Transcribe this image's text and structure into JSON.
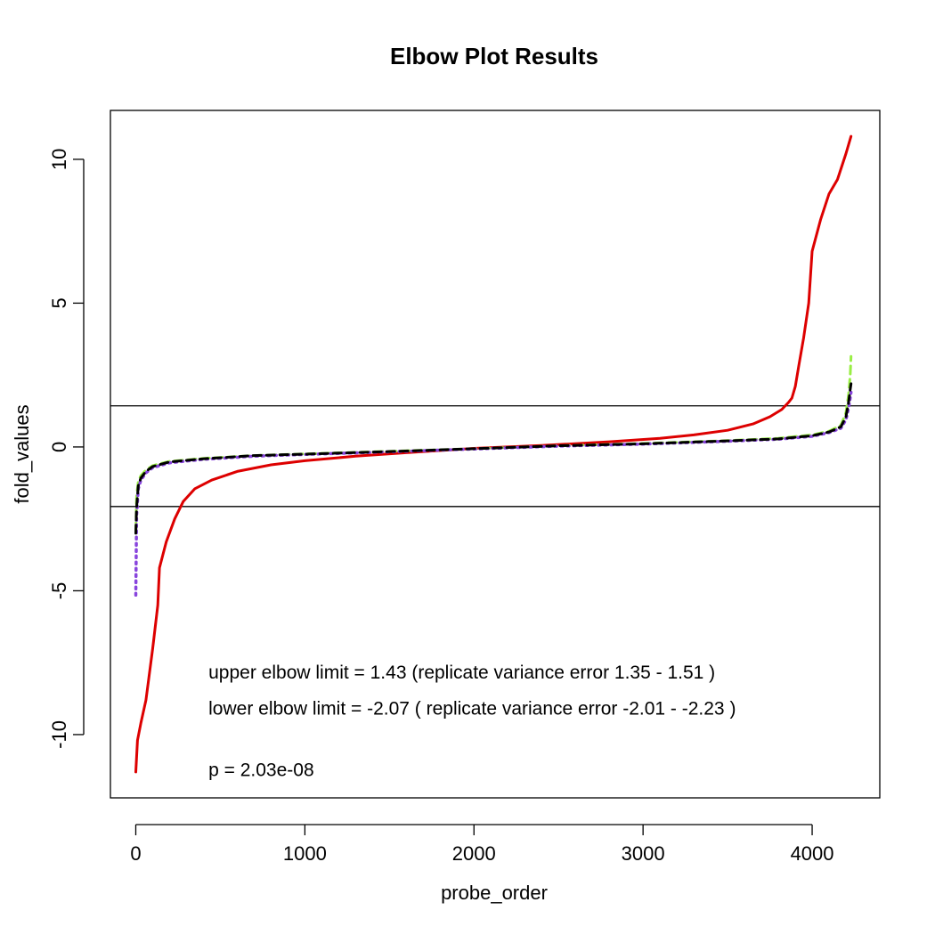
{
  "chart_data": {
    "type": "line",
    "title": "Elbow Plot Results",
    "xlabel": "probe_order",
    "ylabel": "fold_values",
    "xlim": [
      -150,
      4400
    ],
    "ylim": [
      -12.2,
      11.7
    ],
    "x_ticks": [
      0,
      1000,
      2000,
      3000,
      4000
    ],
    "y_ticks": [
      -10,
      -5,
      0,
      5,
      10
    ],
    "grid": false,
    "legend": null,
    "hlines": [
      1.43,
      -2.07
    ],
    "series": [
      {
        "color": "#dd0000",
        "style": "solid",
        "x": [
          0,
          10,
          30,
          60,
          100,
          130,
          140,
          180,
          230,
          280,
          350,
          450,
          600,
          800,
          1000,
          1300,
          1600,
          2000,
          2400,
          2800,
          3100,
          3300,
          3500,
          3650,
          3750,
          3820,
          3860,
          3880,
          3900,
          3920,
          3950,
          3980,
          4000,
          4050,
          4100,
          4150,
          4200,
          4230
        ],
        "y": [
          -11.3,
          -10.2,
          -9.6,
          -8.8,
          -7.0,
          -5.5,
          -4.2,
          -3.3,
          -2.5,
          -1.9,
          -1.45,
          -1.15,
          -0.85,
          -0.62,
          -0.48,
          -0.32,
          -0.2,
          -0.05,
          0.05,
          0.18,
          0.3,
          0.42,
          0.58,
          0.8,
          1.05,
          1.3,
          1.55,
          1.7,
          2.1,
          2.8,
          3.8,
          5.0,
          6.8,
          7.9,
          8.8,
          9.3,
          10.2,
          10.8
        ]
      },
      {
        "color": "#99ee44",
        "style": "dashed",
        "x": [
          0,
          5,
          15,
          30,
          60,
          100,
          200,
          400,
          700,
          1000,
          1500,
          2000,
          2500,
          3000,
          3500,
          3800,
          4000,
          4100,
          4170,
          4200,
          4215,
          4225,
          4230
        ],
        "y": [
          -2.9,
          -1.7,
          -1.2,
          -1.0,
          -0.8,
          -0.65,
          -0.5,
          -0.4,
          -0.3,
          -0.24,
          -0.15,
          -0.06,
          0.04,
          0.12,
          0.22,
          0.3,
          0.42,
          0.55,
          0.75,
          1.2,
          1.8,
          2.5,
          3.15
        ]
      },
      {
        "color": "#8844dd",
        "style": "dotted",
        "x": [
          0,
          5,
          15,
          30,
          60,
          100,
          200,
          400,
          700,
          1000,
          1500,
          2000,
          2500,
          3000,
          3500,
          3800,
          4000,
          4100,
          4170,
          4200,
          4215,
          4225,
          4230
        ],
        "y": [
          -5.15,
          -2.4,
          -1.45,
          -1.15,
          -0.9,
          -0.72,
          -0.55,
          -0.43,
          -0.32,
          -0.26,
          -0.17,
          -0.07,
          0.03,
          0.1,
          0.2,
          0.27,
          0.37,
          0.5,
          0.65,
          0.95,
          1.35,
          1.7,
          1.9
        ]
      },
      {
        "color": "#000000",
        "style": "dashed",
        "x": [
          0,
          5,
          15,
          30,
          60,
          100,
          200,
          400,
          700,
          1000,
          1500,
          2000,
          2500,
          3000,
          3500,
          3800,
          4000,
          4100,
          4170,
          4200,
          4215,
          4225,
          4230
        ],
        "y": [
          -3.0,
          -2.1,
          -1.35,
          -1.08,
          -0.85,
          -0.68,
          -0.52,
          -0.41,
          -0.3,
          -0.25,
          -0.16,
          -0.06,
          0.04,
          0.11,
          0.21,
          0.28,
          0.39,
          0.52,
          0.7,
          1.05,
          1.55,
          2.0,
          2.2
        ]
      }
    ],
    "annotations": [
      {
        "text": "upper elbow limit = 1.43 (replicate variance error 1.35 - 1.51 )",
        "x": 430,
        "y": -7.8
      },
      {
        "text": "lower elbow limit = -2.07 ( replicate variance error -2.01 - -2.23 )",
        "x": 430,
        "y": -9.05
      },
      {
        "text": "p = 2.03e-08",
        "x": 430,
        "y": -11.2
      }
    ]
  }
}
